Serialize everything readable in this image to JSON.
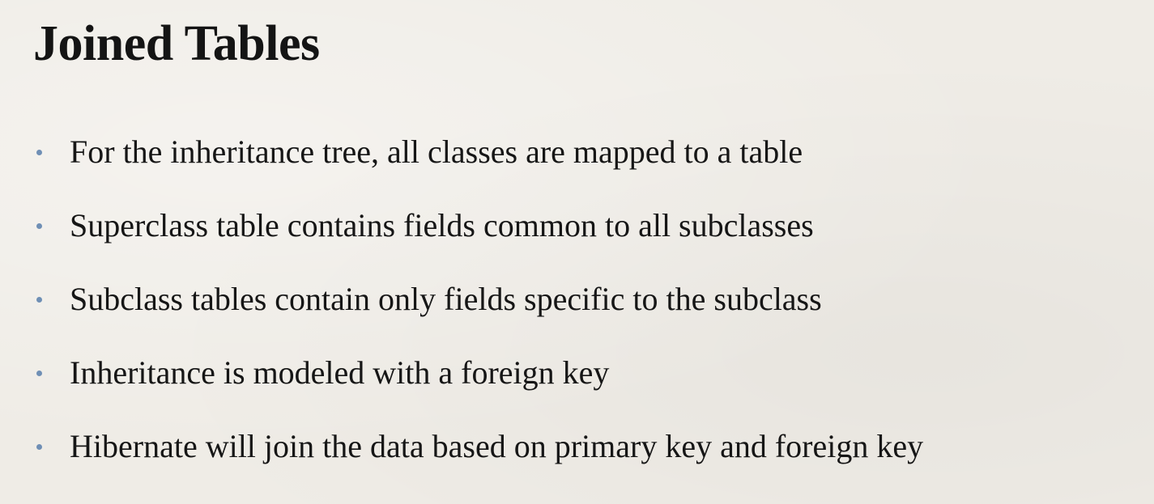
{
  "slide": {
    "title": "Joined Tables",
    "bullets": [
      "For the inheritance tree, all classes are mapped to a table",
      "Superclass table contains fields common to all subclasses",
      "Subclass tables contain only fields specific to the subclass",
      "Inheritance is modeled with a foreign key",
      "Hibernate will join the data based on primary key and foreign key"
    ],
    "bullet_color": "#6f8fb5",
    "text_color": "#151515",
    "background_color": "#efece6"
  }
}
